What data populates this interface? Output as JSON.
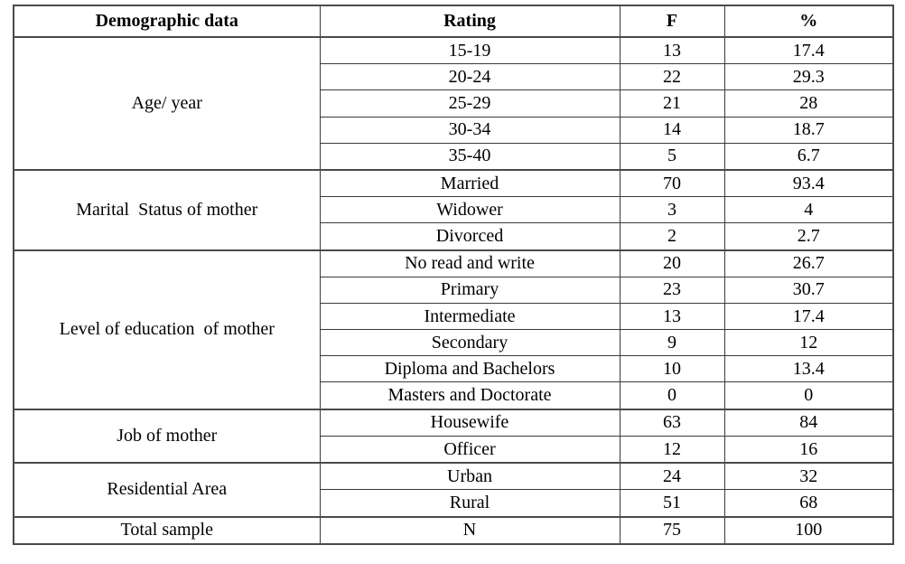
{
  "table": {
    "headers": [
      "Demographic data",
      "Rating",
      "F",
      "%"
    ],
    "groups": [
      {
        "label": "Age/ year",
        "rows": [
          {
            "rating": "15-19",
            "f": "13",
            "pct": "17.4"
          },
          {
            "rating": "20-24",
            "f": "22",
            "pct": "29.3"
          },
          {
            "rating": "25-29",
            "f": "21",
            "pct": "28"
          },
          {
            "rating": "30-34",
            "f": "14",
            "pct": "18.7"
          },
          {
            "rating": "35-40",
            "f": "5",
            "pct": "6.7"
          }
        ]
      },
      {
        "label": "Marital  Status of mother",
        "rows": [
          {
            "rating": "Married",
            "f": "70",
            "pct": "93.4"
          },
          {
            "rating": "Widower",
            "f": "3",
            "pct": "4"
          },
          {
            "rating": "Divorced",
            "f": "2",
            "pct": "2.7"
          }
        ]
      },
      {
        "label": "Level of education  of mother",
        "rows": [
          {
            "rating": "No read and write",
            "f": "20",
            "pct": "26.7"
          },
          {
            "rating": "Primary",
            "f": "23",
            "pct": "30.7"
          },
          {
            "rating": "Intermediate",
            "f": "13",
            "pct": "17.4"
          },
          {
            "rating": "Secondary",
            "f": "9",
            "pct": "12"
          },
          {
            "rating": "Diploma and Bachelors",
            "f": "10",
            "pct": "13.4"
          },
          {
            "rating": "Masters and Doctorate",
            "f": "0",
            "pct": "0"
          }
        ]
      },
      {
        "label": "Job of mother",
        "rows": [
          {
            "rating": "Housewife",
            "f": "63",
            "pct": "84"
          },
          {
            "rating": "Officer",
            "f": "12",
            "pct": "16"
          }
        ]
      },
      {
        "label": "Residential Area",
        "rows": [
          {
            "rating": "Urban",
            "f": "24",
            "pct": "32"
          },
          {
            "rating": "Rural",
            "f": "51",
            "pct": "68"
          }
        ]
      },
      {
        "label": "Total sample",
        "rows": [
          {
            "rating": "N",
            "f": "75",
            "pct": "100"
          }
        ]
      }
    ]
  }
}
